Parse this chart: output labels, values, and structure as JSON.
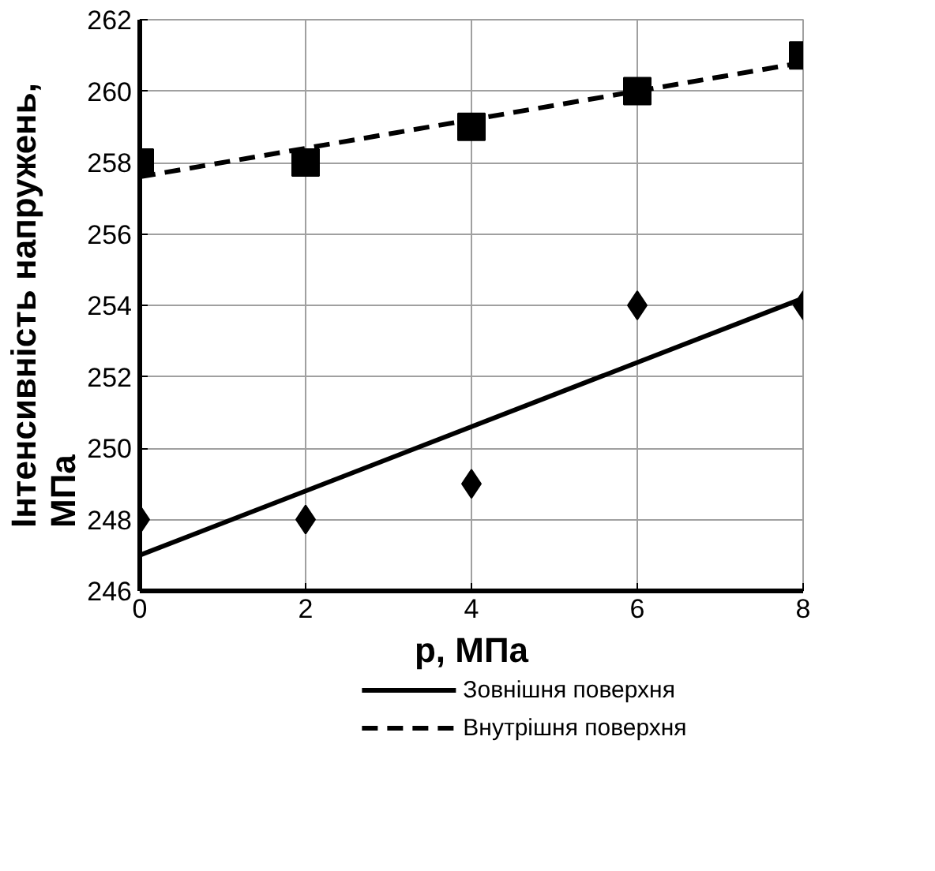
{
  "chart_data": {
    "type": "scatter",
    "xlabel": "p, МПа",
    "ylabel": "Інтенсивність напружень,\nМПа",
    "xlim": [
      0,
      8
    ],
    "xticks": [
      0,
      2,
      4,
      6,
      8
    ],
    "ylim": [
      246,
      262
    ],
    "yticks": [
      246,
      248,
      250,
      252,
      254,
      256,
      258,
      260,
      262
    ],
    "grid": true,
    "legend": "bottom",
    "series": [
      {
        "type": "scatter",
        "marker": "diamond",
        "color": "#000000",
        "x": [
          0,
          2,
          4,
          6,
          8
        ],
        "values": [
          248,
          248,
          249,
          254,
          254
        ]
      },
      {
        "type": "line",
        "name": "Зовнішня поверхня",
        "line_style": "solid",
        "color": "#000000",
        "x": [
          0,
          8
        ],
        "values": [
          247.0,
          254.2
        ]
      },
      {
        "type": "scatter",
        "marker": "square",
        "color": "#000000",
        "x": [
          0,
          2,
          4,
          6,
          8
        ],
        "values": [
          258,
          258,
          259,
          260,
          261
        ]
      },
      {
        "type": "line",
        "name": "Внутрішня поверхня",
        "line_style": "dashed",
        "color": "#000000",
        "x": [
          0,
          8
        ],
        "values": [
          257.6,
          260.8
        ]
      }
    ]
  }
}
